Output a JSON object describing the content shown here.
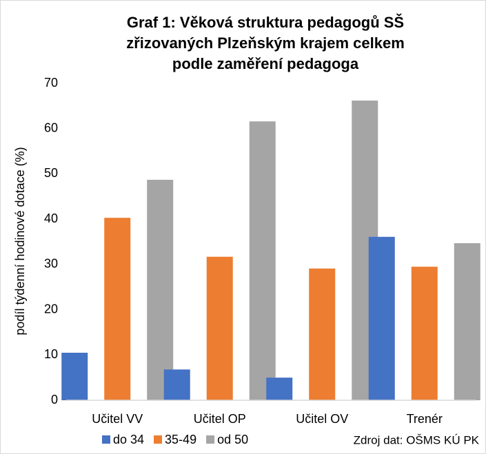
{
  "chart_data": {
    "type": "bar",
    "title": [
      "Graf 1: Věková struktura pedagogů SŠ",
      "zřizovaných Plzeňským krajem celkem",
      "podle zaměření pedagoga"
    ],
    "ylabel": "podíl týdenní hodinové dotace (%)",
    "source": "Zdroj dat: OŠMS KÚ PK",
    "categories": [
      "Učitel VV",
      "Učitel OP",
      "Učitel OV",
      "Trenér"
    ],
    "series": [
      {
        "name": "do 34",
        "color": "#4472c4",
        "values": [
          10.5,
          6.8,
          5.0,
          36.1
        ]
      },
      {
        "name": "35-49",
        "color": "#ed7d31",
        "values": [
          40.3,
          31.7,
          29.1,
          29.5
        ]
      },
      {
        "name": "od 50",
        "color": "#a5a5a5",
        "values": [
          48.7,
          61.6,
          66.2,
          34.7
        ]
      }
    ],
    "ylim": [
      0,
      70
    ],
    "yticks": [
      0,
      10,
      20,
      30,
      40,
      50,
      60,
      70
    ],
    "grid": false
  }
}
